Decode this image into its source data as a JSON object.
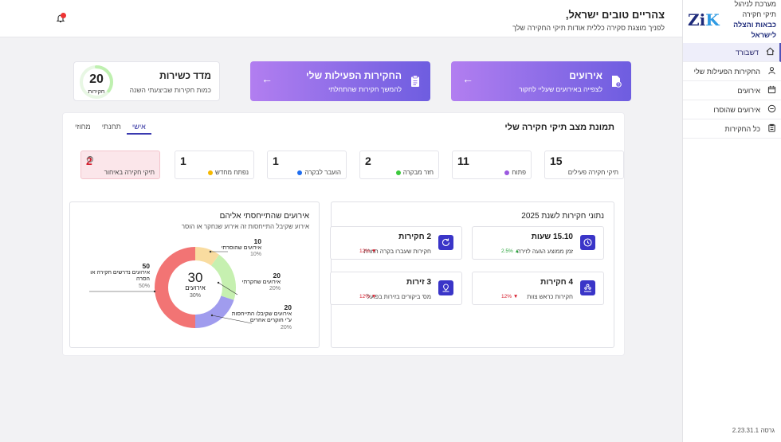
{
  "sidebar": {
    "logo_line1": "מערכת לניהול תיקי חקירה",
    "logo_line2": "כבאות והצלה לישראל",
    "logo_mark": "ZiK",
    "items": [
      {
        "label": "דשבורד",
        "icon": "home-icon"
      },
      {
        "label": "החקירות הפעילות שלי",
        "icon": "user-icon"
      },
      {
        "label": "אירועים",
        "icon": "calendar-icon"
      },
      {
        "label": "אירועים שהוסרו",
        "icon": "minus-circle-icon"
      },
      {
        "label": "כל החקירות",
        "icon": "clipboard-icon"
      }
    ],
    "version": "גרסה 2.23.31.1"
  },
  "header": {
    "greeting": "צהריים טובים ישראל,",
    "subtitle": "לפניך מוצגת סקירה כללית אודות תיקי החקירה שלך",
    "notification_count": "0"
  },
  "cards": {
    "events": {
      "title": "אירועים",
      "subtitle": "לצפייה באירועים שעליי לחקור"
    },
    "investigations": {
      "title": "החקירות הפעילות שלי",
      "subtitle": "להמשך חקירות שהתחלתי"
    },
    "fitness": {
      "title": "מדד כשירות",
      "subtitle": "כמות חקירות שביצעתי השנה",
      "value": "20",
      "unit": "חקירות",
      "progress": 0.35
    }
  },
  "panel": {
    "title": "תמונת מצב תיקי חקירה שלי",
    "tabs": [
      "אישי",
      "תחנתי",
      "מחוזי"
    ],
    "stats": [
      {
        "value": "15",
        "label": "תיקי חקירה פעילים",
        "color": ""
      },
      {
        "value": "11",
        "label": "פתוח",
        "color": "#9b59e0"
      },
      {
        "value": "2",
        "label": "חזר מבקרה",
        "color": "#3cc93c"
      },
      {
        "value": "1",
        "label": "הועבר לבקרה",
        "color": "#1f6ef0"
      },
      {
        "value": "1",
        "label": "נפתח מחדש",
        "color": "#f5b800"
      },
      {
        "value": "2",
        "label": "תיקי חקירה באיחור",
        "color": ""
      }
    ]
  },
  "yearly": {
    "title": "נתוני חקירות לשנת 2025",
    "metrics": [
      {
        "title": "15.10 שעות",
        "label": "זמן ממוצע הגעה לזירה",
        "delta": "2.5%",
        "trend": "up",
        "icon": "clock-icon"
      },
      {
        "title": "2 חקירות",
        "label": "חקירות שעברו בקרה חוזרת",
        "delta": "12%",
        "trend": "down",
        "icon": "refresh-icon"
      },
      {
        "title": "4 חקירות",
        "label": "חקירות כראש צוות",
        "delta": "12%",
        "trend": "down",
        "icon": "team-icon"
      },
      {
        "title": "3 זירות",
        "label": "מס' ביקורים בזירות בפועל",
        "delta": "12%",
        "trend": "down",
        "icon": "location-icon"
      }
    ]
  },
  "referrals": {
    "title": "אירועים שהתייחסתי אליהם",
    "subtitle": "אירוע שקיבל התייחסות זה אירוע שנחקר או הוסר",
    "center_value": "30",
    "center_label": "אירועים",
    "center_pct": "30%",
    "annotations": [
      {
        "value": "10",
        "label": "אירועים שהוסרתי",
        "pct": "10%"
      },
      {
        "value": "20",
        "label": "אירועים שחקרתי",
        "pct": "20%"
      },
      {
        "value": "20",
        "label": "אירועים שקיבלו התייחסות ע\"י חוקרים אחרים",
        "pct": "20%"
      },
      {
        "value": "50",
        "label": "אירועים נדרשים חקירה או הסרה",
        "pct": "50%"
      }
    ]
  },
  "chart_data": {
    "type": "pie",
    "categories": [
      "אירועים שהוסרתי",
      "אירועים שחקרתי",
      "אירועים שקיבלו התייחסות ע\"י חוקרים אחרים",
      "אירועים נדרשים חקירה או הסרה"
    ],
    "values": [
      10,
      20,
      20,
      50
    ],
    "colors": [
      "#f9dca0",
      "#c6f0b0",
      "#a09cee",
      "#f27474"
    ]
  }
}
